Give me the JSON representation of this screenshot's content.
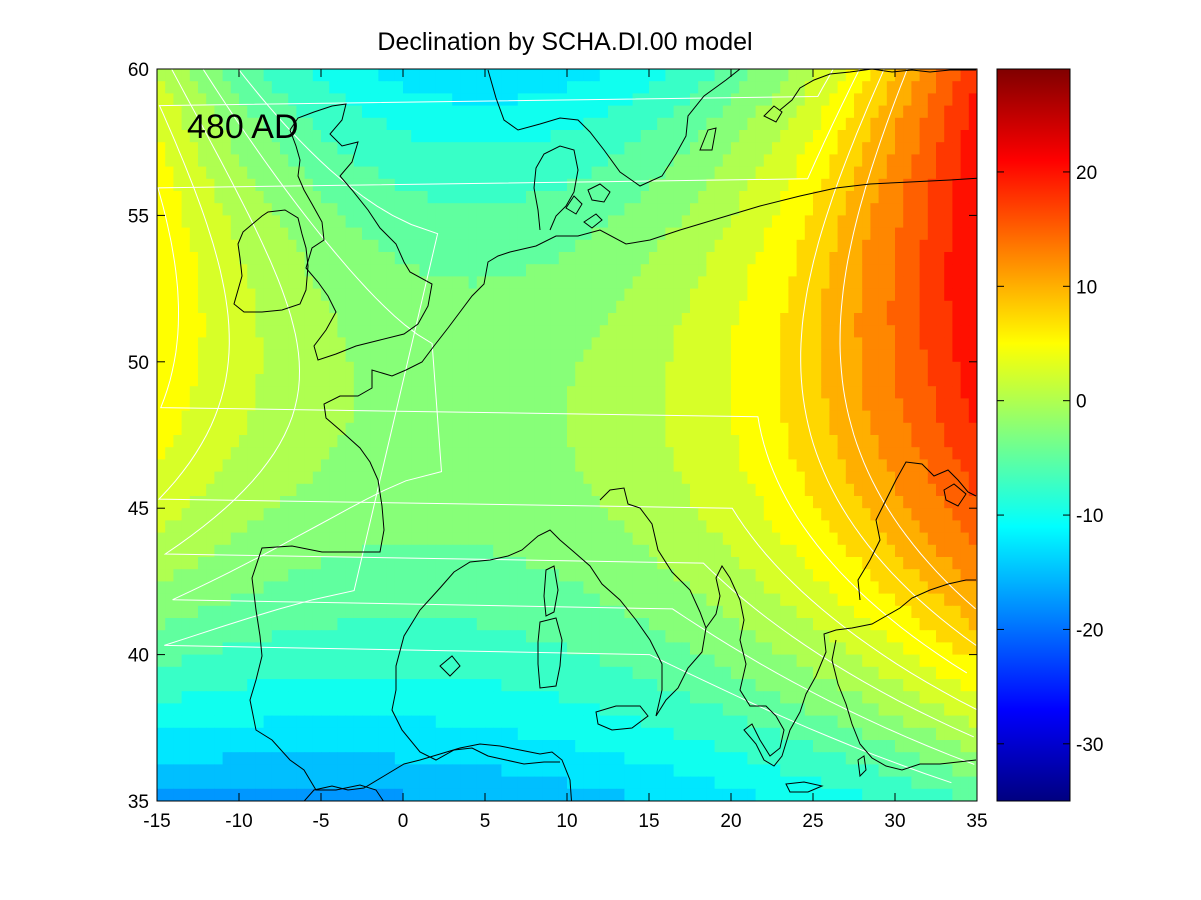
{
  "chart_data": {
    "type": "heatmap",
    "title": "Declination by SCHA.DI.00 model",
    "annotation": "480 AD",
    "xlim": [
      -15,
      35
    ],
    "ylim": [
      35,
      60
    ],
    "x_ticks": [
      -15,
      -10,
      -5,
      0,
      5,
      10,
      15,
      20,
      25,
      30,
      35
    ],
    "y_ticks": [
      35,
      40,
      45,
      50,
      55,
      60
    ],
    "x_tick_labels": [
      "-15",
      "-10",
      "-5",
      "0",
      "5",
      "10",
      "15",
      "20",
      "25",
      "30",
      "35"
    ],
    "y_tick_labels": [
      "35",
      "40",
      "45",
      "50",
      "55",
      "60"
    ],
    "colorbar": {
      "range": [
        -35,
        29
      ],
      "ticks": [
        -30,
        -20,
        -10,
        0,
        10,
        20
      ],
      "tick_labels": [
        "-30",
        "-20",
        "-10",
        "0",
        "10",
        "20"
      ],
      "colormap": "jet"
    },
    "contour_levels": [
      -5,
      -2.5,
      0,
      2.5,
      5,
      7.5,
      10
    ],
    "grid": false,
    "coastlines": true
  }
}
